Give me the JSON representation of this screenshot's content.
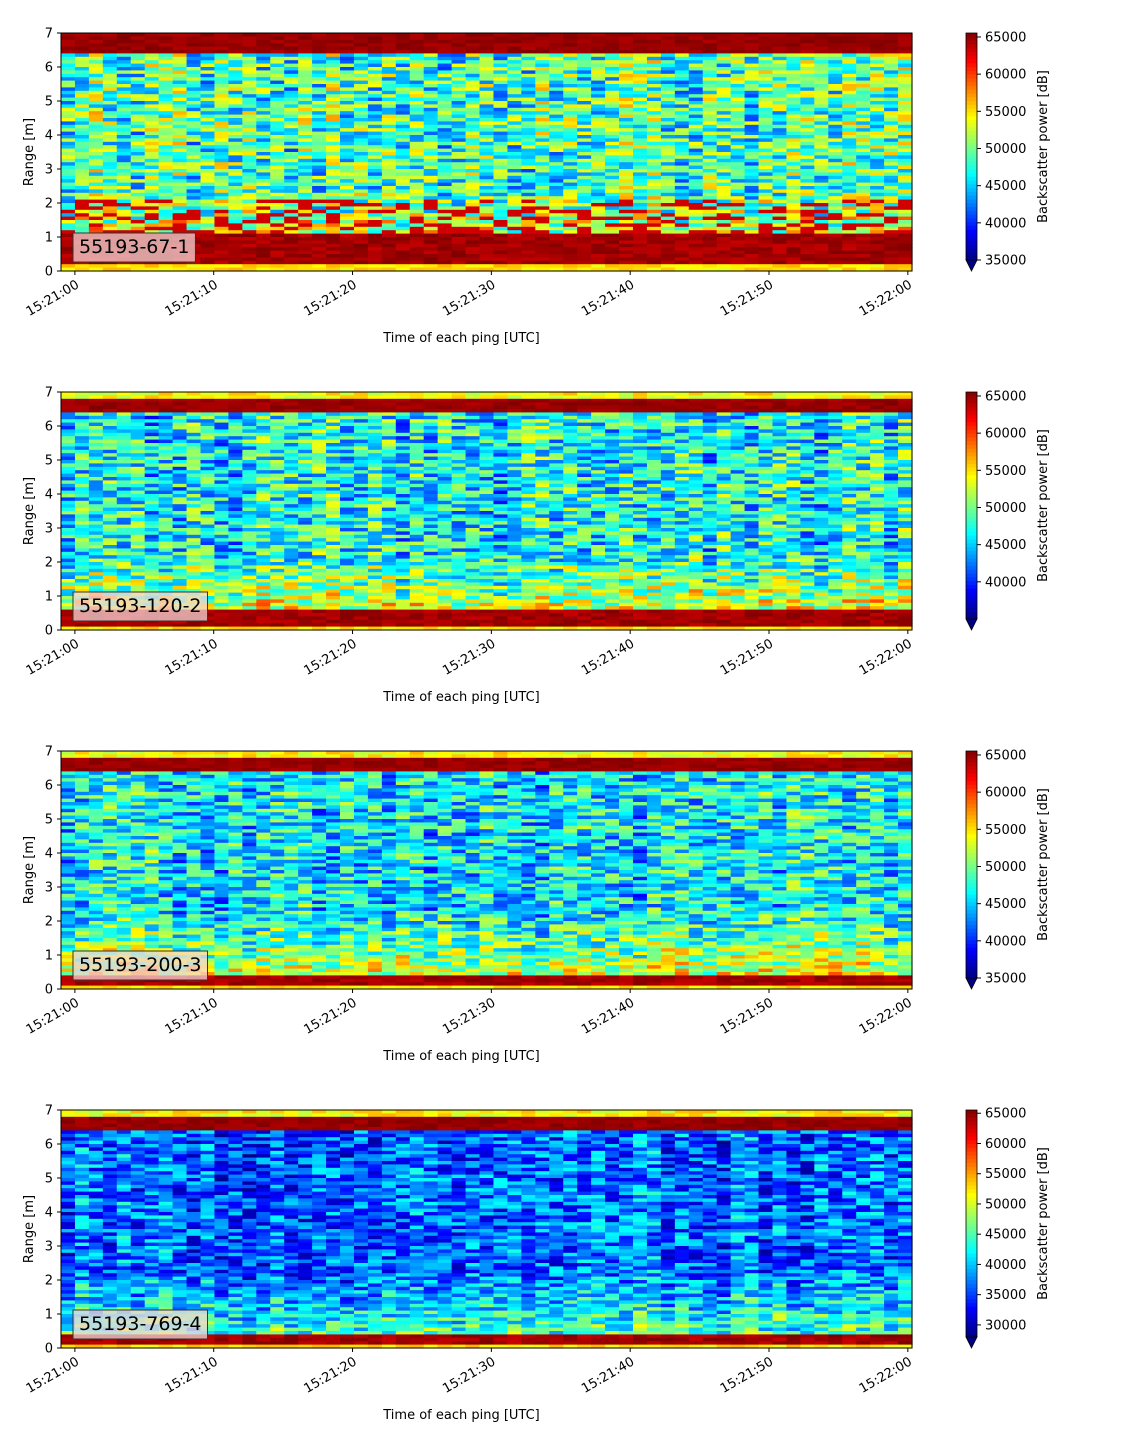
{
  "chart_data": [
    {
      "type": "heatmap",
      "label": "55193-67-1",
      "xlabel": "Time of each ping [UTC]",
      "ylabel": "Range [m]",
      "x_ticks": [
        "15:21:00",
        "15:21:10",
        "15:21:20",
        "15:21:30",
        "15:21:40",
        "15:21:50",
        "15:22:00"
      ],
      "xlim_seconds": [
        -1,
        60.3
      ],
      "ylim": [
        0,
        7
      ],
      "y_ticks": [
        0,
        1,
        2,
        3,
        4,
        5,
        6,
        7
      ],
      "colorbar_label": "Backscatter power [dB]",
      "colorbar_range": [
        35000,
        65535
      ],
      "colorbar_ticks": [
        35000,
        40000,
        45000,
        50000,
        55000,
        60000,
        65000
      ],
      "colormap": "jet",
      "colorbar_extend": "min"
    },
    {
      "type": "heatmap",
      "label": "55193-120-2",
      "xlabel": "Time of each ping [UTC]",
      "ylabel": "Range [m]",
      "x_ticks": [
        "15:21:00",
        "15:21:10",
        "15:21:20",
        "15:21:30",
        "15:21:40",
        "15:21:50",
        "15:22:00"
      ],
      "xlim_seconds": [
        -1,
        60.3
      ],
      "ylim": [
        0,
        7
      ],
      "y_ticks": [
        0,
        1,
        2,
        3,
        4,
        5,
        6,
        7
      ],
      "colorbar_label": "Backscatter power [dB]",
      "colorbar_range": [
        35000,
        65535
      ],
      "colorbar_ticks": [
        40000,
        45000,
        50000,
        55000,
        60000,
        65000
      ],
      "colormap": "jet",
      "colorbar_extend": "min"
    },
    {
      "type": "heatmap",
      "label": "55193-200-3",
      "xlabel": "Time of each ping [UTC]",
      "ylabel": "Range [m]",
      "x_ticks": [
        "15:21:00",
        "15:21:10",
        "15:21:20",
        "15:21:30",
        "15:21:40",
        "15:21:50",
        "15:22:00"
      ],
      "xlim_seconds": [
        -1,
        60.3
      ],
      "ylim": [
        0,
        7
      ],
      "y_ticks": [
        0,
        1,
        2,
        3,
        4,
        5,
        6,
        7
      ],
      "colorbar_label": "Backscatter power [dB]",
      "colorbar_range": [
        35000,
        65535
      ],
      "colorbar_ticks": [
        35000,
        40000,
        45000,
        50000,
        55000,
        60000,
        65000
      ],
      "colormap": "jet",
      "colorbar_extend": "min"
    },
    {
      "type": "heatmap",
      "label": "55193-769-4",
      "xlabel": "Time of each ping [UTC]",
      "ylabel": "Range [m]",
      "x_ticks": [
        "15:21:00",
        "15:21:10",
        "15:21:20",
        "15:21:30",
        "15:21:40",
        "15:21:50",
        "15:22:00"
      ],
      "xlim_seconds": [
        -1,
        60.3
      ],
      "ylim": [
        0,
        7
      ],
      "y_ticks": [
        0,
        1,
        2,
        3,
        4,
        5,
        6,
        7
      ],
      "colorbar_label": "Backscatter power [dB]",
      "colorbar_range": [
        28000,
        65535
      ],
      "colorbar_ticks": [
        30000,
        35000,
        40000,
        45000,
        50000,
        55000,
        60000,
        65000
      ],
      "colormap": "jet",
      "colorbar_extend": "min"
    }
  ]
}
